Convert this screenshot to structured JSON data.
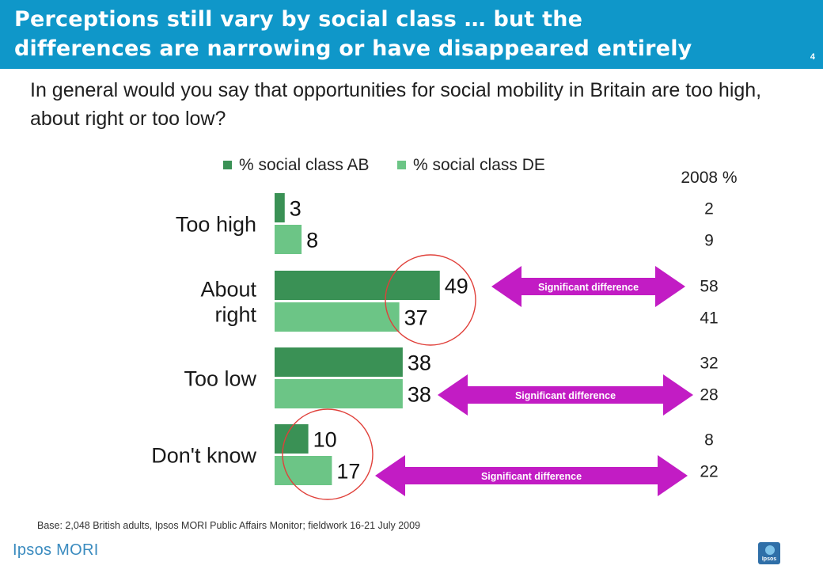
{
  "header": {
    "title_line1": "Perceptions still vary by social class … but the",
    "title_line2": "differences are narrowing or have disappeared entirely",
    "page_number": "4"
  },
  "question": "In general would you say that opportunities for social mobility in Britain are too high, about right or too low?",
  "footnote": "Base: 2,048 British adults, Ipsos MORI Public Affairs Monitor;  fieldwork 16-21 July 2009",
  "logo": {
    "text": "Ipsos MORI",
    "badge": "Ipsos"
  },
  "chart_data": {
    "type": "bar",
    "orientation": "horizontal",
    "categories": [
      "Too high",
      "About right",
      "Too low",
      "Don't know"
    ],
    "series": [
      {
        "name": "% social class AB",
        "values": [
          3,
          49,
          38,
          10
        ],
        "color": "#3a9155"
      },
      {
        "name": "% social class DE",
        "values": [
          8,
          37,
          38,
          17
        ],
        "color": "#6cc586"
      }
    ],
    "legend_position": "top",
    "comparison_header": "2008 %",
    "comparison_2008": [
      {
        "AB": "2",
        "DE": "9"
      },
      {
        "AB": "58",
        "DE": "41"
      },
      {
        "AB": "32",
        "DE": "28"
      },
      {
        "AB": "8",
        "DE": "22"
      }
    ],
    "annotations": [
      {
        "category": "About right",
        "label": "Significant difference"
      },
      {
        "category": "Too low",
        "label": "Significant difference"
      },
      {
        "category": "Don't know",
        "label": "Significant difference"
      }
    ],
    "circled_categories": [
      "About right",
      "Don't know"
    ],
    "annotation_color": "#c21cc4",
    "circle_color": "#e0403a"
  }
}
